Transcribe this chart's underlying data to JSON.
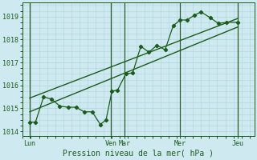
{
  "xlabel": "Pression niveau de la mer( hPa )",
  "background_color": "#ceeaf0",
  "grid_color": "#aed4dc",
  "line_color": "#1a5c1a",
  "vline_color": "#2a5c2a",
  "ylim": [
    1013.8,
    1019.6
  ],
  "yticks": [
    1014,
    1015,
    1016,
    1017,
    1018,
    1019
  ],
  "xlim": [
    0,
    10.0
  ],
  "day_labels": [
    "Lun",
    "Ven",
    "Mar",
    "Mer",
    "Jeu"
  ],
  "day_x": [
    0.3,
    3.8,
    4.4,
    6.8,
    9.3
  ],
  "vline_x": [
    0.3,
    3.8,
    4.4,
    6.8,
    9.3
  ],
  "main_line_x": [
    0.3,
    0.55,
    0.9,
    1.25,
    1.6,
    1.95,
    2.3,
    2.65,
    3.0,
    3.35,
    3.6,
    3.85,
    4.1,
    4.45,
    4.75,
    5.1,
    5.45,
    5.8,
    6.15,
    6.5,
    6.8,
    7.1,
    7.4,
    7.7,
    8.1,
    8.45,
    8.8,
    9.3
  ],
  "main_line_y": [
    1014.4,
    1014.4,
    1015.5,
    1015.4,
    1015.1,
    1015.05,
    1015.05,
    1014.85,
    1014.85,
    1014.3,
    1014.5,
    1015.75,
    1015.8,
    1016.5,
    1016.55,
    1017.7,
    1017.45,
    1017.75,
    1017.55,
    1018.6,
    1018.85,
    1018.85,
    1019.05,
    1019.2,
    1018.95,
    1018.7,
    1018.75,
    1018.75
  ],
  "trend1_x": [
    0.3,
    9.3
  ],
  "trend1_y": [
    1014.85,
    1018.55
  ],
  "trend2_x": [
    0.3,
    9.3
  ],
  "trend2_y": [
    1015.45,
    1018.92
  ]
}
